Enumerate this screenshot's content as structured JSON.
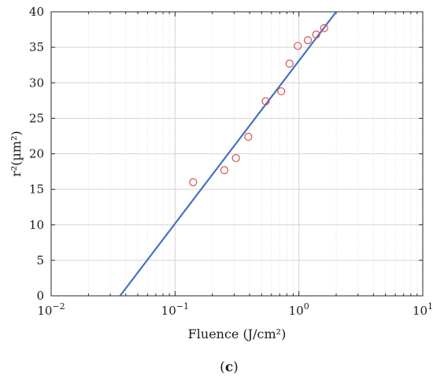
{
  "chart_data": {
    "type": "scatter",
    "title": "",
    "xlabel": "Fluence (J/cm²)",
    "ylabel": "r²(µm²)",
    "x_scale": "log",
    "xlim": [
      0.01,
      10
    ],
    "ylim": [
      0,
      40
    ],
    "grid": true,
    "x_tick_labels": [
      {
        "value": 0.01,
        "base": "10",
        "exp": "−2"
      },
      {
        "value": 0.1,
        "base": "10",
        "exp": "−1"
      },
      {
        "value": 1,
        "base": "10",
        "exp": "0"
      },
      {
        "value": 10,
        "base": "10",
        "exp": "1"
      }
    ],
    "y_ticks": [
      0,
      5,
      10,
      15,
      20,
      25,
      30,
      35,
      40
    ],
    "series": [
      {
        "type": "scatter",
        "marker": "open-circle",
        "color": "#d9534f",
        "points": [
          {
            "x": 0.14,
            "y": 16.0
          },
          {
            "x": 0.25,
            "y": 17.7
          },
          {
            "x": 0.31,
            "y": 19.4
          },
          {
            "x": 0.39,
            "y": 22.4
          },
          {
            "x": 0.54,
            "y": 27.4
          },
          {
            "x": 0.72,
            "y": 28.8
          },
          {
            "x": 0.84,
            "y": 32.7
          },
          {
            "x": 0.98,
            "y": 35.2
          },
          {
            "x": 1.18,
            "y": 36.0
          },
          {
            "x": 1.38,
            "y": 36.8
          },
          {
            "x": 1.6,
            "y": 37.7
          }
        ]
      },
      {
        "type": "line",
        "color": "#4472c4",
        "points": [
          {
            "x": 0.036,
            "y": 0
          },
          {
            "x": 2.0,
            "y": 40
          }
        ]
      }
    ],
    "caption": {
      "open": "(",
      "letter": "c",
      "close": ")"
    }
  }
}
